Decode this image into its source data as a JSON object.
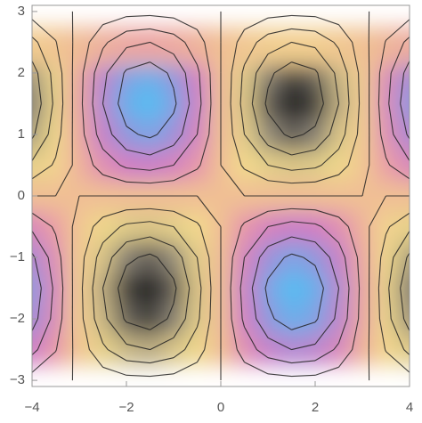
{
  "chart_data": {
    "type": "contour",
    "x": [
      -4,
      -3.5,
      -3,
      -2.5,
      -2,
      -1.5,
      -1,
      -0.5,
      0,
      0.5,
      1,
      1.5,
      2,
      2.5,
      3,
      3.5,
      4
    ],
    "y": [
      -3,
      -2.5,
      -2,
      -1.5,
      -1,
      -0.5,
      0,
      0.5,
      1,
      1.5,
      2,
      2.5,
      3
    ],
    "z": [
      [
        -0.11,
        -0.05,
        0.02,
        0.08,
        0.13,
        0.14,
        0.12,
        0.07,
        0,
        -0.07,
        -0.12,
        -0.14,
        -0.13,
        -0.08,
        -0.02,
        0.05,
        0.11
      ],
      [
        -0.46,
        -0.21,
        0.08,
        0.36,
        0.55,
        0.6,
        0.5,
        0.29,
        0,
        -0.29,
        -0.5,
        -0.6,
        -0.55,
        -0.36,
        -0.08,
        0.21,
        0.46
      ],
      [
        -0.69,
        -0.32,
        0.13,
        0.55,
        0.83,
        0.91,
        0.76,
        0.44,
        0,
        -0.44,
        -0.76,
        -0.91,
        -0.83,
        -0.55,
        -0.13,
        0.32,
        0.69
      ],
      [
        -0.76,
        -0.35,
        0.14,
        0.6,
        0.91,
        1.0,
        0.84,
        0.48,
        0,
        -0.48,
        -0.84,
        -1.0,
        -0.91,
        -0.6,
        -0.14,
        0.35,
        0.76
      ],
      [
        -0.64,
        -0.29,
        0.12,
        0.5,
        0.76,
        0.84,
        0.71,
        0.4,
        0,
        -0.4,
        -0.71,
        -0.84,
        -0.76,
        -0.5,
        -0.12,
        0.29,
        0.64
      ],
      [
        -0.36,
        -0.17,
        0.07,
        0.29,
        0.44,
        0.48,
        0.4,
        0.23,
        0,
        -0.23,
        -0.4,
        -0.48,
        -0.44,
        -0.29,
        -0.07,
        0.17,
        0.36
      ],
      [
        0,
        0,
        0,
        0,
        0,
        0,
        0,
        0,
        0,
        0,
        0,
        0,
        0,
        0,
        0,
        0,
        0
      ],
      [
        0.36,
        0.17,
        -0.07,
        -0.29,
        -0.44,
        -0.48,
        -0.4,
        -0.23,
        0,
        0.23,
        0.4,
        0.48,
        0.44,
        0.29,
        0.07,
        -0.17,
        -0.36
      ],
      [
        0.64,
        0.29,
        -0.12,
        -0.5,
        -0.76,
        -0.84,
        -0.71,
        -0.4,
        0,
        0.4,
        0.71,
        0.84,
        0.76,
        0.5,
        0.12,
        -0.29,
        -0.64
      ],
      [
        0.76,
        0.35,
        -0.14,
        -0.6,
        -0.91,
        -1.0,
        -0.84,
        -0.48,
        0,
        0.48,
        0.84,
        1.0,
        0.91,
        0.6,
        0.14,
        -0.35,
        -0.76
      ],
      [
        0.69,
        0.32,
        -0.13,
        -0.55,
        -0.83,
        -0.91,
        -0.76,
        -0.44,
        0,
        0.44,
        0.76,
        0.91,
        0.83,
        0.55,
        0.13,
        -0.32,
        -0.69
      ],
      [
        0.46,
        0.21,
        -0.08,
        -0.36,
        -0.55,
        -0.6,
        -0.5,
        -0.29,
        0,
        0.29,
        0.5,
        0.6,
        0.55,
        0.36,
        0.08,
        -0.21,
        -0.46
      ],
      [
        0.11,
        0.05,
        -0.02,
        -0.08,
        -0.13,
        -0.14,
        -0.12,
        -0.07,
        0,
        0.07,
        0.12,
        0.14,
        0.13,
        0.08,
        0.02,
        -0.05,
        -0.11
      ]
    ],
    "contour_levels": [
      -0.8,
      -0.6,
      -0.4,
      -0.2,
      0,
      0.2,
      0.4,
      0.6,
      0.8
    ],
    "colormap": [
      [
        -1,
        "#55bdf2"
      ],
      [
        -0.7,
        "#a08fd8"
      ],
      [
        -0.45,
        "#d07cc4"
      ],
      [
        -0.2,
        "#e99aa8"
      ],
      [
        0,
        "#f0bf94"
      ],
      [
        0.25,
        "#f3dc8c"
      ],
      [
        0.5,
        "#d8c488"
      ],
      [
        0.75,
        "#8a8478"
      ],
      [
        1,
        "#1e1e1e"
      ]
    ],
    "xlim": [
      -4,
      4
    ],
    "ylim": [
      -3.1,
      3.1
    ],
    "xticks": [
      {
        "value": -4,
        "label": "−4"
      },
      {
        "value": -2,
        "label": "−2"
      },
      0,
      2,
      4
    ],
    "yticks": [
      {
        "value": -3,
        "label": "−3"
      },
      {
        "value": -2,
        "label": "−2"
      },
      {
        "value": -1,
        "label": "−1"
      },
      0,
      1,
      2,
      3
    ]
  }
}
